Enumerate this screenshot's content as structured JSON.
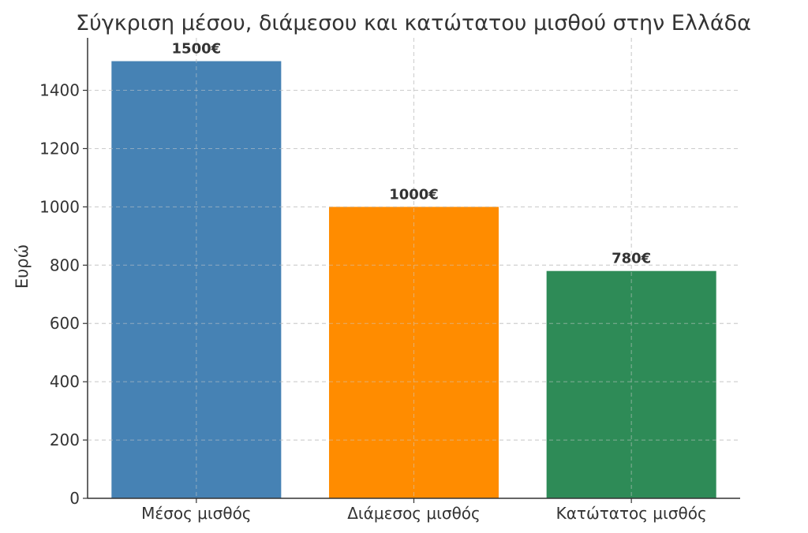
{
  "chart_data": {
    "type": "bar",
    "title": "Σύγκριση μέσου, διάμεσου και κατώτατου μισθού στην Ελλάδα",
    "xlabel": "",
    "ylabel": "Ευρώ",
    "categories": [
      "Μέσος μισθός",
      "Διάμεσος μισθός",
      "Κατώτατος μισθός"
    ],
    "values": [
      1500,
      1000,
      780
    ],
    "value_labels": [
      "1500€",
      "1000€",
      "780€"
    ],
    "colors": [
      "#4682B4",
      "#FF8C00",
      "#2E8B57"
    ],
    "ylim": [
      0,
      1580
    ],
    "yticks": [
      0,
      200,
      400,
      600,
      800,
      1000,
      1200,
      1400
    ],
    "grid": true,
    "legend": "none"
  }
}
